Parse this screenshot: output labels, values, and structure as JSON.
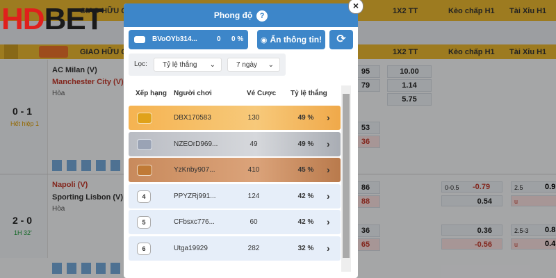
{
  "logo": {
    "part1": "HD",
    "part2": "BET"
  },
  "background": {
    "league": "GIAO HỮU CÂ",
    "columns": [
      "1X2 TT",
      "Kèo chấp H1",
      "Tài Xỉu H1"
    ],
    "matches": [
      {
        "home": "AC Milan (V)",
        "away": "Manchester City (V)",
        "draw": "Hòa",
        "score": "0 - 1",
        "status": "Hết hiệp 1",
        "odds": [
          "95",
          "79",
          "10.00",
          "1.14",
          "5.75",
          "53",
          "36"
        ]
      },
      {
        "home": "Napoli (V)",
        "away": "Sporting Lisbon (V)",
        "draw": "Hòa",
        "score": "2 - 0",
        "status": "1H 32'",
        "odds": [
          "86",
          "88",
          "0-0.5",
          "-0.79",
          "0.54",
          "2.5",
          "0.9",
          "u",
          "36",
          "65",
          "0.36",
          "-0.56",
          "2.5-3",
          "0.8",
          "u",
          "0.4"
        ]
      }
    ]
  },
  "modal": {
    "title": "Phong độ",
    "help": "?",
    "close": "×",
    "user": {
      "name": "BVoOYb314...",
      "bets": "0",
      "rate": "0 %"
    },
    "hide_button": "Ẩn thông tin!",
    "filter": {
      "label": "Lọc:",
      "criterion": "Tỷ lệ thắng",
      "period": "7 ngày"
    },
    "columns": [
      "Xếp hạng",
      "Người chơi",
      "Vé Cược",
      "Tỷ lệ thắng"
    ],
    "rows": [
      {
        "rank": null,
        "player": "DBX170583",
        "bets": "130",
        "rate": "49 %"
      },
      {
        "rank": null,
        "player": "NZEOrD969...",
        "bets": "49",
        "rate": "49 %"
      },
      {
        "rank": null,
        "player": "YzKnby907...",
        "bets": "410",
        "rate": "45 %"
      },
      {
        "rank": "4",
        "player": "PPYZRj991...",
        "bets": "124",
        "rate": "42 %"
      },
      {
        "rank": "5",
        "player": "CFbsxc776...",
        "bets": "60",
        "rate": "42 %"
      },
      {
        "rank": "6",
        "player": "Utga19929",
        "bets": "282",
        "rate": "32 %"
      }
    ]
  }
}
